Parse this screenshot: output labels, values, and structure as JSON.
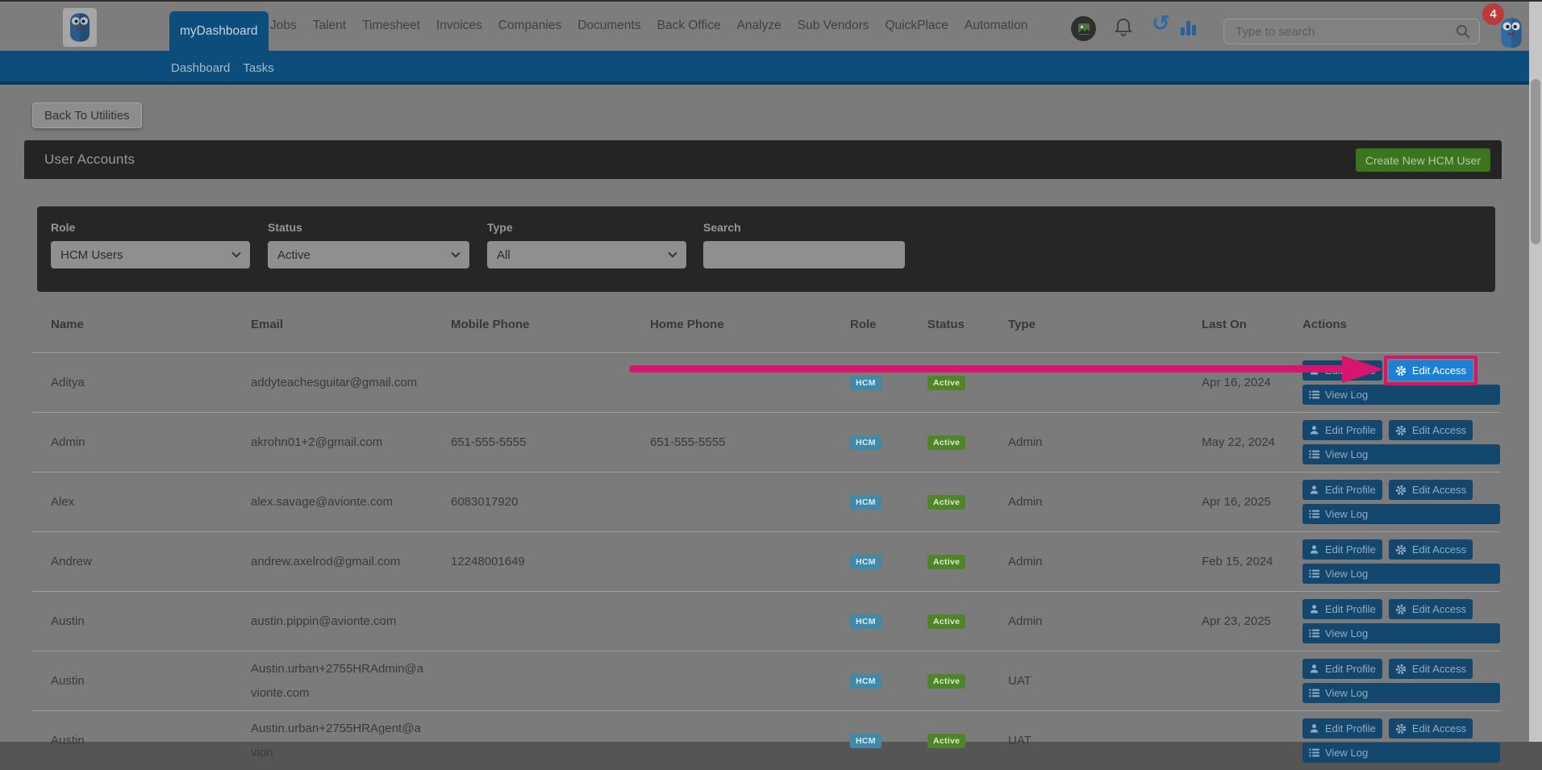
{
  "nav": {
    "active_tab": "myDashboard",
    "items": [
      "Jobs",
      "Talent",
      "Timesheet",
      "Invoices",
      "Companies",
      "Documents",
      "Back Office",
      "Analyze",
      "Sub Vendors",
      "QuickPlace",
      "Automation"
    ],
    "search_placeholder": "Type to search",
    "notification_count": "4"
  },
  "subnav": {
    "items": [
      "Dashboard",
      "Tasks"
    ]
  },
  "page": {
    "back_button": "Back To Utilities",
    "panel_title": "User Accounts",
    "create_button": "Create New HCM User"
  },
  "filters": {
    "role": {
      "label": "Role",
      "value": "HCM Users"
    },
    "status": {
      "label": "Status",
      "value": "Active"
    },
    "type": {
      "label": "Type",
      "value": "All"
    },
    "search": {
      "label": "Search",
      "value": ""
    }
  },
  "table": {
    "columns": [
      "Name",
      "Email",
      "Mobile Phone",
      "Home Phone",
      "Role",
      "Status",
      "Type",
      "Last On",
      "Actions"
    ],
    "action_labels": {
      "edit_profile": "Edit Profile",
      "edit_access": "Edit Access",
      "view_log": "View Log"
    },
    "rows": [
      {
        "name": "Aditya",
        "email": "addyteachesguitar@gmail.com",
        "mobile": "",
        "home": "",
        "role": "HCM",
        "status": "Active",
        "type": "",
        "last_on": "Apr 16, 2024",
        "highlight": true
      },
      {
        "name": "Admin",
        "email": "akrohn01+2@gmail.com",
        "mobile": "651-555-5555",
        "home": "651-555-5555",
        "role": "HCM",
        "status": "Active",
        "type": "Admin",
        "last_on": "May 22, 2024"
      },
      {
        "name": "Alex",
        "email": "alex.savage@avionte.com",
        "mobile": "6083017920",
        "home": "",
        "role": "HCM",
        "status": "Active",
        "type": "Admin",
        "last_on": "Apr 16, 2025"
      },
      {
        "name": "Andrew",
        "email": "andrew.axelrod@gmail.com",
        "mobile": "12248001649",
        "home": "",
        "role": "HCM",
        "status": "Active",
        "type": "Admin",
        "last_on": "Feb 15, 2024"
      },
      {
        "name": "Austin",
        "email": "austin.pippin@avionte.com",
        "mobile": "",
        "home": "",
        "role": "HCM",
        "status": "Active",
        "type": "Admin",
        "last_on": "Apr 23, 2025"
      },
      {
        "name": "Austin",
        "email": "Austin.urban+2755HRAdmin@avionte.com",
        "mobile": "",
        "home": "",
        "role": "HCM",
        "status": "Active",
        "type": "UAT",
        "last_on": ""
      },
      {
        "name": "Austin",
        "email": "Austin.urban+2755HRAgent@avion",
        "mobile": "",
        "home": "",
        "role": "HCM",
        "status": "Active",
        "type": "UAT",
        "last_on": ""
      }
    ]
  },
  "annotation": {
    "type": "arrow-highlight",
    "color": "#d6156e",
    "target": "edit-access-button-row-1"
  },
  "icons": {
    "top_nav": [
      "avatar-icon",
      "bell-icon",
      "undo-icon",
      "bar-chart-icon",
      "search-icon",
      "owl-logo-icon"
    ],
    "actions": {
      "edit_profile": "person-icon",
      "edit_access": "gear-icon",
      "view_log": "list-icon"
    }
  },
  "colors": {
    "accent_blue": "#1a80d8",
    "dimmed_button_blue": "#14476d",
    "highlight_pink": "#d6156e",
    "role_badge_teal": "#4089a7",
    "status_badge_green": "#4f8429",
    "create_button_green": "#3d751f",
    "nav_blue": "#0c4d7c"
  }
}
